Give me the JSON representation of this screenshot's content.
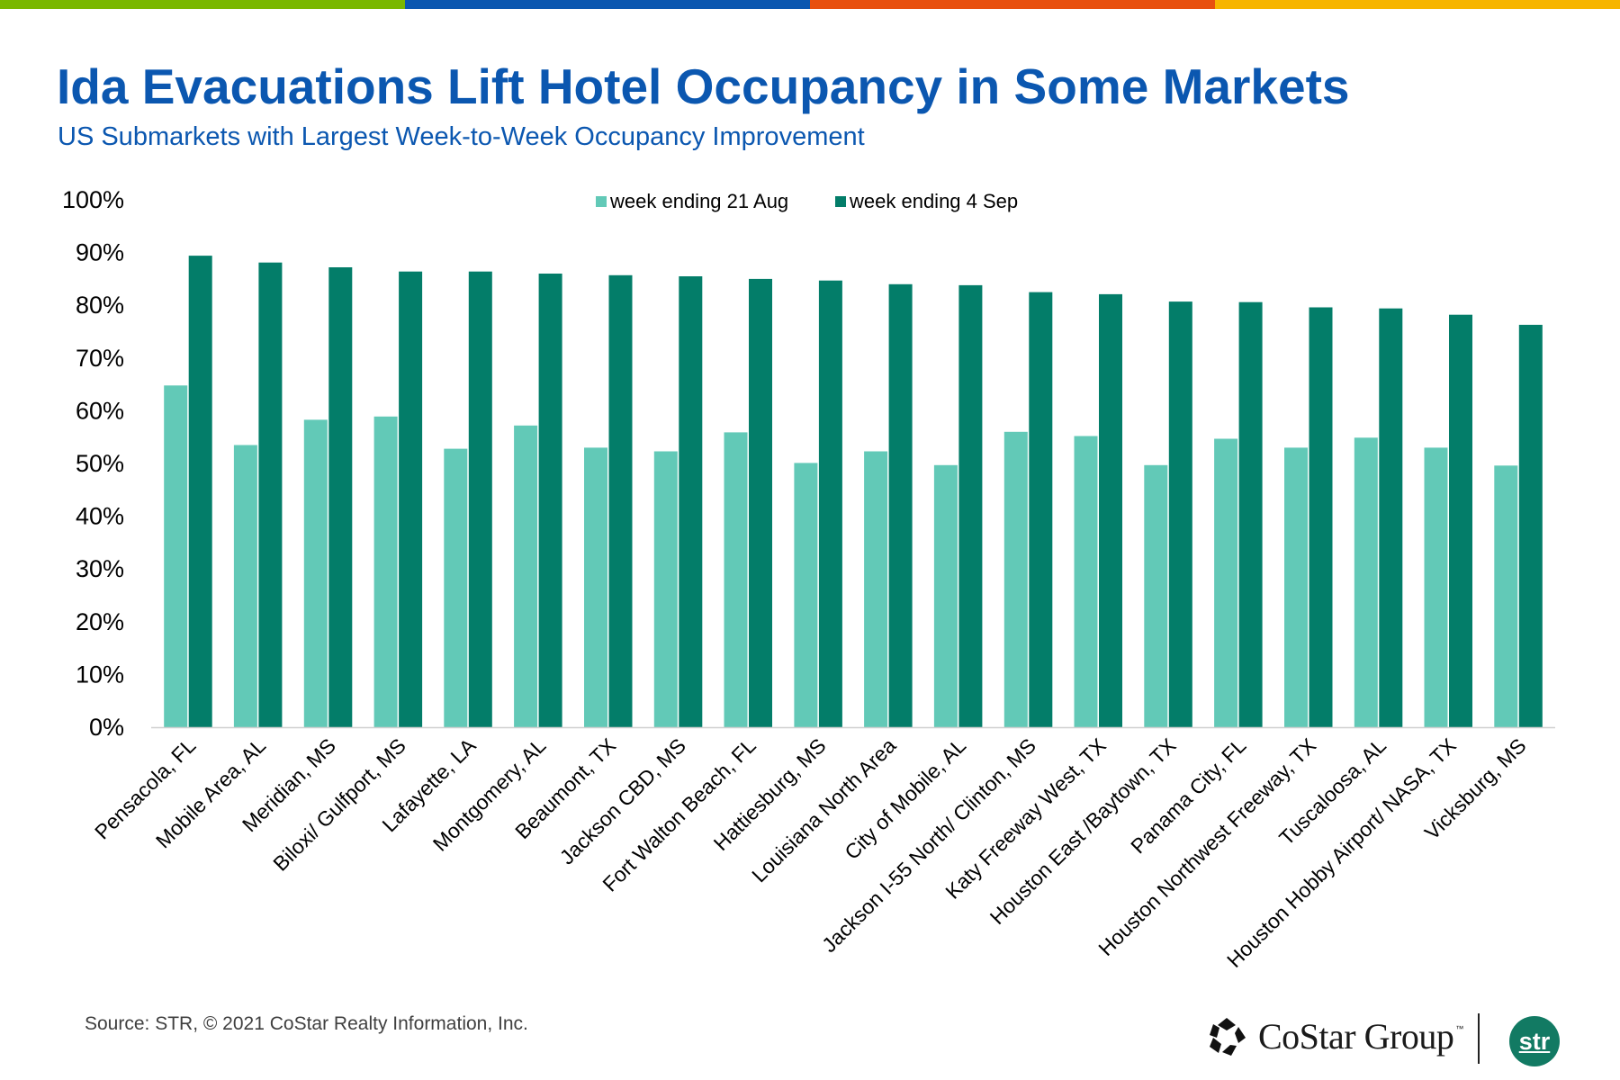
{
  "header": {
    "accent_colors": [
      "#7ab800",
      "#0b57b0",
      "#e8500f",
      "#f7b500"
    ],
    "title": "Ida Evacuations Lift Hotel Occupancy in Some Markets",
    "subtitle": "US Submarkets with Largest Week-to-Week Occupancy Improvement"
  },
  "chart_data": {
    "type": "bar",
    "title": "Ida Evacuations Lift Hotel Occupancy in Some Markets",
    "subtitle": "US Submarkets with Largest Week-to-Week Occupancy Improvement",
    "xlabel": "",
    "ylabel": "",
    "ylim": [
      0,
      100
    ],
    "yticks": [
      0,
      10,
      20,
      30,
      40,
      50,
      60,
      70,
      80,
      90,
      100
    ],
    "ytick_labels": [
      "0%",
      "10%",
      "20%",
      "30%",
      "40%",
      "50%",
      "60%",
      "70%",
      "80%",
      "90%",
      "100%"
    ],
    "grid": false,
    "legend_position": "top-center",
    "categories": [
      "Pensacola, FL",
      "Mobile Area, AL",
      "Meridian, MS",
      "Biloxi/ Gulfport, MS",
      "Lafayette, LA",
      "Montgomery, AL",
      "Beaumont, TX",
      "Jackson CBD, MS",
      "Fort Walton Beach, FL",
      "Hattiesburg, MS",
      "Louisiana North Area",
      "City of Mobile, AL",
      "Jackson I-55 North/ Clinton, MS",
      "Katy Freeway West, TX",
      "Houston East /Baytown, TX",
      "Panama City, FL",
      "Houston Northwest Freeway, TX",
      "Tuscaloosa, AL",
      "Houston Hobby Airport/ NASA, TX",
      "Vicksburg, MS"
    ],
    "series": [
      {
        "name": "week ending 21 Aug",
        "color": "#62c9b7",
        "values": [
          64.8,
          53.5,
          58.3,
          58.9,
          52.8,
          57.2,
          53.0,
          52.3,
          55.9,
          50.1,
          52.3,
          49.7,
          56.0,
          55.2,
          49.7,
          54.7,
          53.0,
          54.9,
          53.0,
          49.6
        ]
      },
      {
        "name": "week ending 4 Sep",
        "color": "#037d69",
        "values": [
          89.4,
          88.1,
          87.2,
          86.4,
          86.4,
          86.0,
          85.7,
          85.5,
          85.0,
          84.7,
          84.0,
          83.8,
          82.5,
          82.1,
          80.7,
          80.6,
          79.6,
          79.4,
          78.2,
          76.3
        ]
      }
    ]
  },
  "footer": {
    "source": "Source: STR, © 2021  CoStar Realty Information, Inc.",
    "costar_logo_text": "CoStar Group",
    "costar_tm": "™",
    "str_logo_text": "str"
  }
}
